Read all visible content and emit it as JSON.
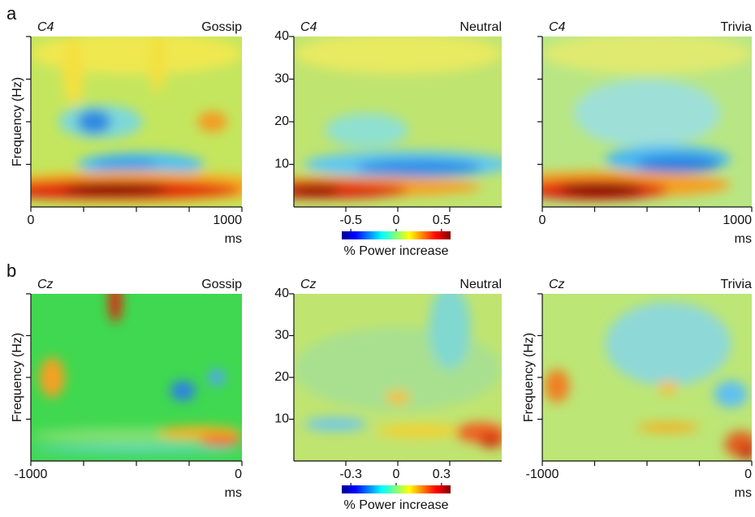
{
  "figure": {
    "panels": [
      {
        "label": "a",
        "colorbar": {
          "ticks": [
            -0.5,
            0,
            0.5
          ],
          "clim": [
            -0.6,
            0.6
          ],
          "label": "% Power increase"
        },
        "plots": [
          {
            "electrode": "C4",
            "condition": "Gossip",
            "ylabel": "Frequency (Hz)",
            "ylim": [
              0,
              40
            ],
            "yticks": [
              10,
              20,
              30,
              40
            ],
            "ytick_labels": false,
            "xlim": [
              0,
              1000
            ],
            "xticks": [
              0,
              1000
            ],
            "xlabel": "ms"
          },
          {
            "electrode": "C4",
            "condition": "Neutral",
            "ylim": [
              0,
              40
            ],
            "yticks": [
              10,
              20,
              30,
              40
            ],
            "ytick_labels": true
          },
          {
            "electrode": "C4",
            "condition": "Trivia",
            "ylim": [
              0,
              40
            ],
            "yticks": [
              10,
              20,
              30,
              40
            ],
            "ytick_labels": false,
            "xlim": [
              0,
              1000
            ],
            "xticks": [
              0,
              1000
            ],
            "xlabel": "ms"
          }
        ]
      },
      {
        "label": "b",
        "colorbar": {
          "ticks": [
            -0.3,
            0,
            0.3
          ],
          "clim": [
            -0.36,
            0.36
          ],
          "label": "% Power increase"
        },
        "plots": [
          {
            "electrode": "Cz",
            "condition": "Gossip",
            "ylabel": "Frequency (Hz)",
            "ylim": [
              0,
              40
            ],
            "yticks": [
              10,
              20,
              30,
              40
            ],
            "ytick_labels": false,
            "xlim": [
              -1000,
              0
            ],
            "xticks": [
              -1000,
              0
            ],
            "xlabel": "ms"
          },
          {
            "electrode": "Cz",
            "condition": "Neutral",
            "ylim": [
              0,
              40
            ],
            "yticks": [
              10,
              20,
              30,
              40
            ],
            "ytick_labels": true
          },
          {
            "electrode": "Cz",
            "condition": "Trivia",
            "ylabel": "Frequency (Hz)",
            "ylim": [
              0,
              40
            ],
            "yticks": [
              10,
              20,
              30,
              40
            ],
            "ytick_labels": false,
            "xlim": [
              -1000,
              0
            ],
            "xticks": [
              -1000,
              0
            ],
            "xlabel": "ms"
          }
        ]
      }
    ]
  }
}
